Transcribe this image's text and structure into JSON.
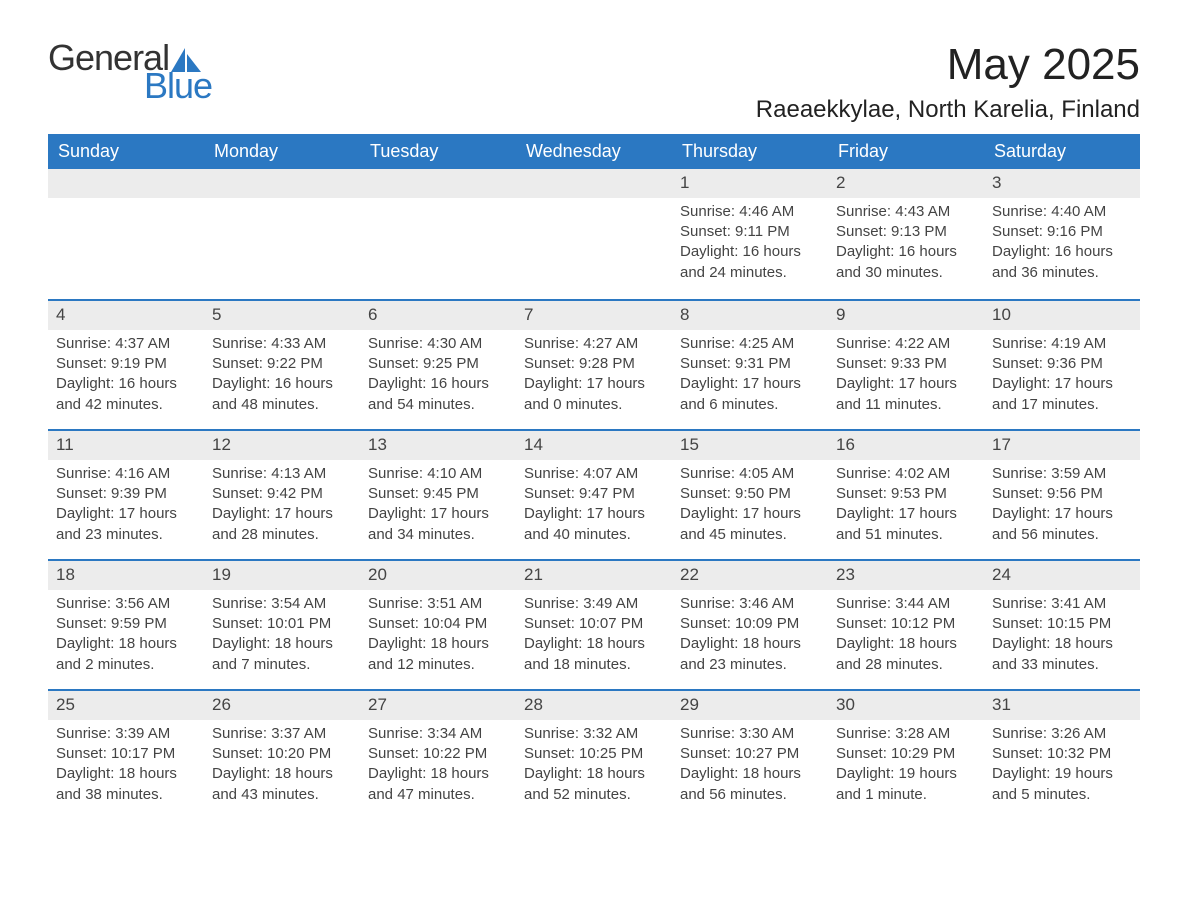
{
  "logo": {
    "text_general": "General",
    "text_blue": "Blue",
    "icon_color": "#2b78c2"
  },
  "title": {
    "month": "May 2025",
    "location": "Raeaekkylae, North Karelia, Finland"
  },
  "colors": {
    "header_bg": "#2b78c2",
    "header_text": "#ffffff",
    "daynum_bg": "#ececec",
    "text": "#444444",
    "border": "#2b78c2"
  },
  "weekdays": [
    "Sunday",
    "Monday",
    "Tuesday",
    "Wednesday",
    "Thursday",
    "Friday",
    "Saturday"
  ],
  "weeks": [
    [
      {
        "empty": true
      },
      {
        "empty": true
      },
      {
        "empty": true
      },
      {
        "empty": true
      },
      {
        "day": "1",
        "sunrise": "Sunrise: 4:46 AM",
        "sunset": "Sunset: 9:11 PM",
        "daylight1": "Daylight: 16 hours",
        "daylight2": "and 24 minutes."
      },
      {
        "day": "2",
        "sunrise": "Sunrise: 4:43 AM",
        "sunset": "Sunset: 9:13 PM",
        "daylight1": "Daylight: 16 hours",
        "daylight2": "and 30 minutes."
      },
      {
        "day": "3",
        "sunrise": "Sunrise: 4:40 AM",
        "sunset": "Sunset: 9:16 PM",
        "daylight1": "Daylight: 16 hours",
        "daylight2": "and 36 minutes."
      }
    ],
    [
      {
        "day": "4",
        "sunrise": "Sunrise: 4:37 AM",
        "sunset": "Sunset: 9:19 PM",
        "daylight1": "Daylight: 16 hours",
        "daylight2": "and 42 minutes."
      },
      {
        "day": "5",
        "sunrise": "Sunrise: 4:33 AM",
        "sunset": "Sunset: 9:22 PM",
        "daylight1": "Daylight: 16 hours",
        "daylight2": "and 48 minutes."
      },
      {
        "day": "6",
        "sunrise": "Sunrise: 4:30 AM",
        "sunset": "Sunset: 9:25 PM",
        "daylight1": "Daylight: 16 hours",
        "daylight2": "and 54 minutes."
      },
      {
        "day": "7",
        "sunrise": "Sunrise: 4:27 AM",
        "sunset": "Sunset: 9:28 PM",
        "daylight1": "Daylight: 17 hours",
        "daylight2": "and 0 minutes."
      },
      {
        "day": "8",
        "sunrise": "Sunrise: 4:25 AM",
        "sunset": "Sunset: 9:31 PM",
        "daylight1": "Daylight: 17 hours",
        "daylight2": "and 6 minutes."
      },
      {
        "day": "9",
        "sunrise": "Sunrise: 4:22 AM",
        "sunset": "Sunset: 9:33 PM",
        "daylight1": "Daylight: 17 hours",
        "daylight2": "and 11 minutes."
      },
      {
        "day": "10",
        "sunrise": "Sunrise: 4:19 AM",
        "sunset": "Sunset: 9:36 PM",
        "daylight1": "Daylight: 17 hours",
        "daylight2": "and 17 minutes."
      }
    ],
    [
      {
        "day": "11",
        "sunrise": "Sunrise: 4:16 AM",
        "sunset": "Sunset: 9:39 PM",
        "daylight1": "Daylight: 17 hours",
        "daylight2": "and 23 minutes."
      },
      {
        "day": "12",
        "sunrise": "Sunrise: 4:13 AM",
        "sunset": "Sunset: 9:42 PM",
        "daylight1": "Daylight: 17 hours",
        "daylight2": "and 28 minutes."
      },
      {
        "day": "13",
        "sunrise": "Sunrise: 4:10 AM",
        "sunset": "Sunset: 9:45 PM",
        "daylight1": "Daylight: 17 hours",
        "daylight2": "and 34 minutes."
      },
      {
        "day": "14",
        "sunrise": "Sunrise: 4:07 AM",
        "sunset": "Sunset: 9:47 PM",
        "daylight1": "Daylight: 17 hours",
        "daylight2": "and 40 minutes."
      },
      {
        "day": "15",
        "sunrise": "Sunrise: 4:05 AM",
        "sunset": "Sunset: 9:50 PM",
        "daylight1": "Daylight: 17 hours",
        "daylight2": "and 45 minutes."
      },
      {
        "day": "16",
        "sunrise": "Sunrise: 4:02 AM",
        "sunset": "Sunset: 9:53 PM",
        "daylight1": "Daylight: 17 hours",
        "daylight2": "and 51 minutes."
      },
      {
        "day": "17",
        "sunrise": "Sunrise: 3:59 AM",
        "sunset": "Sunset: 9:56 PM",
        "daylight1": "Daylight: 17 hours",
        "daylight2": "and 56 minutes."
      }
    ],
    [
      {
        "day": "18",
        "sunrise": "Sunrise: 3:56 AM",
        "sunset": "Sunset: 9:59 PM",
        "daylight1": "Daylight: 18 hours",
        "daylight2": "and 2 minutes."
      },
      {
        "day": "19",
        "sunrise": "Sunrise: 3:54 AM",
        "sunset": "Sunset: 10:01 PM",
        "daylight1": "Daylight: 18 hours",
        "daylight2": "and 7 minutes."
      },
      {
        "day": "20",
        "sunrise": "Sunrise: 3:51 AM",
        "sunset": "Sunset: 10:04 PM",
        "daylight1": "Daylight: 18 hours",
        "daylight2": "and 12 minutes."
      },
      {
        "day": "21",
        "sunrise": "Sunrise: 3:49 AM",
        "sunset": "Sunset: 10:07 PM",
        "daylight1": "Daylight: 18 hours",
        "daylight2": "and 18 minutes."
      },
      {
        "day": "22",
        "sunrise": "Sunrise: 3:46 AM",
        "sunset": "Sunset: 10:09 PM",
        "daylight1": "Daylight: 18 hours",
        "daylight2": "and 23 minutes."
      },
      {
        "day": "23",
        "sunrise": "Sunrise: 3:44 AM",
        "sunset": "Sunset: 10:12 PM",
        "daylight1": "Daylight: 18 hours",
        "daylight2": "and 28 minutes."
      },
      {
        "day": "24",
        "sunrise": "Sunrise: 3:41 AM",
        "sunset": "Sunset: 10:15 PM",
        "daylight1": "Daylight: 18 hours",
        "daylight2": "and 33 minutes."
      }
    ],
    [
      {
        "day": "25",
        "sunrise": "Sunrise: 3:39 AM",
        "sunset": "Sunset: 10:17 PM",
        "daylight1": "Daylight: 18 hours",
        "daylight2": "and 38 minutes."
      },
      {
        "day": "26",
        "sunrise": "Sunrise: 3:37 AM",
        "sunset": "Sunset: 10:20 PM",
        "daylight1": "Daylight: 18 hours",
        "daylight2": "and 43 minutes."
      },
      {
        "day": "27",
        "sunrise": "Sunrise: 3:34 AM",
        "sunset": "Sunset: 10:22 PM",
        "daylight1": "Daylight: 18 hours",
        "daylight2": "and 47 minutes."
      },
      {
        "day": "28",
        "sunrise": "Sunrise: 3:32 AM",
        "sunset": "Sunset: 10:25 PM",
        "daylight1": "Daylight: 18 hours",
        "daylight2": "and 52 minutes."
      },
      {
        "day": "29",
        "sunrise": "Sunrise: 3:30 AM",
        "sunset": "Sunset: 10:27 PM",
        "daylight1": "Daylight: 18 hours",
        "daylight2": "and 56 minutes."
      },
      {
        "day": "30",
        "sunrise": "Sunrise: 3:28 AM",
        "sunset": "Sunset: 10:29 PM",
        "daylight1": "Daylight: 19 hours",
        "daylight2": "and 1 minute."
      },
      {
        "day": "31",
        "sunrise": "Sunrise: 3:26 AM",
        "sunset": "Sunset: 10:32 PM",
        "daylight1": "Daylight: 19 hours",
        "daylight2": "and 5 minutes."
      }
    ]
  ]
}
